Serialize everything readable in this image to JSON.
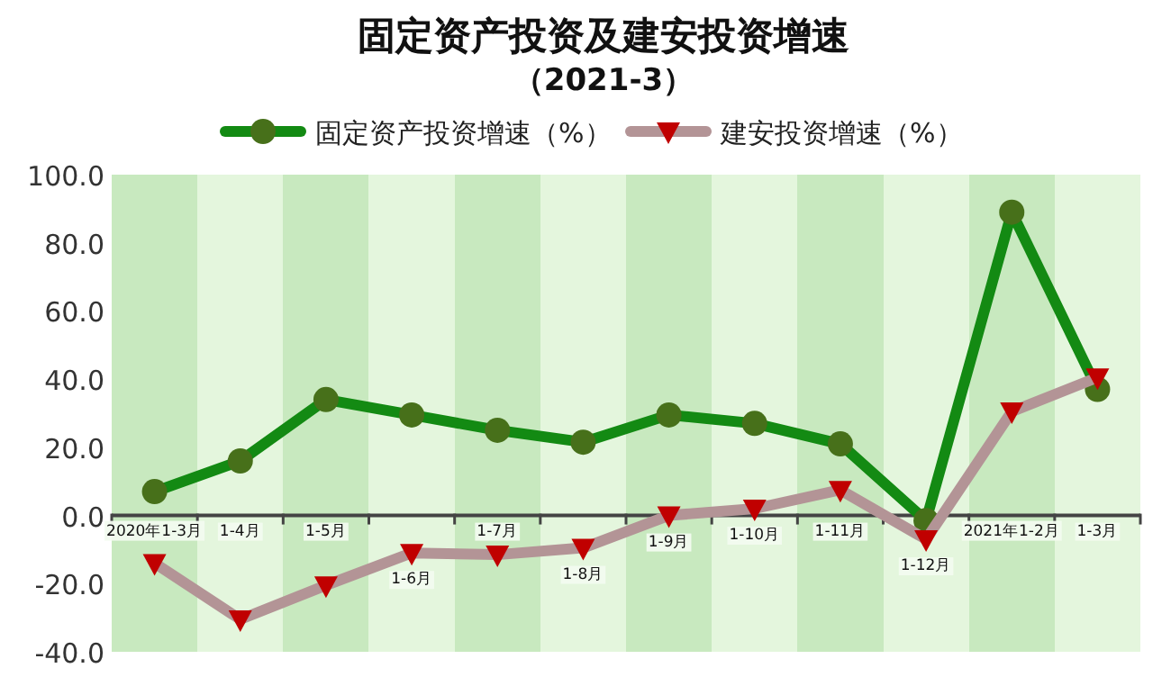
{
  "chart_data": {
    "type": "line",
    "title": "固定资产投资及建安投资增速",
    "subtitle": "（2021-3）",
    "categories": [
      "2020年1-3月",
      "1-4月",
      "1-5月",
      "1-6月",
      "1-7月",
      "1-8月",
      "1-9月",
      "1-10月",
      "1-11月",
      "1-12月",
      "2021年1-2月",
      "1-3月"
    ],
    "series": [
      {
        "name": "固定资产投资增速（%）",
        "color": "#138a13",
        "marker": "circle",
        "values": [
          7,
          16,
          34,
          29.5,
          25,
          21.5,
          29.5,
          27,
          21,
          -1.5,
          89,
          37
        ]
      },
      {
        "name": "建安投资增速（%）",
        "color": "#b39496",
        "marker": "triangle",
        "values": [
          -14,
          -30.5,
          -20.5,
          -11,
          -11.5,
          -9.5,
          0,
          2,
          7.5,
          -7,
          30.5,
          40.5
        ]
      }
    ],
    "ylim": [
      -40,
      100
    ],
    "yticks": [
      {
        "value": 100,
        "label": "100.0"
      },
      {
        "value": 80,
        "label": "80.0"
      },
      {
        "value": 60,
        "label": "60.0"
      },
      {
        "value": 40,
        "label": "40.0"
      },
      {
        "value": 20,
        "label": "20.0"
      },
      {
        "value": 0,
        "label": "0.0"
      },
      {
        "value": -20,
        "label": "-20.0"
      },
      {
        "value": -40,
        "label": "-40.0"
      }
    ],
    "legend": "top",
    "grid": false,
    "line_style": "solid"
  }
}
